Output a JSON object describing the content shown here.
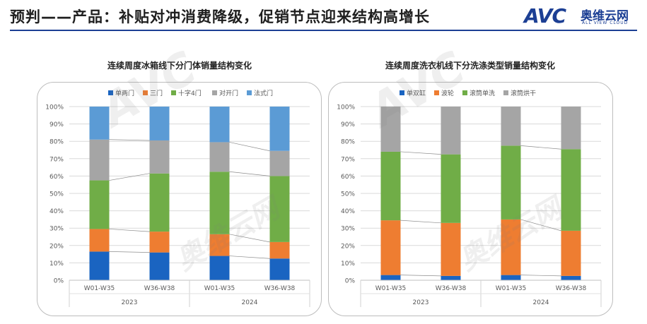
{
  "header": {
    "title": "预判——产品：补贴对冲消费降级，促销节点迎来结构高增长",
    "logo_text": "AVC",
    "logo_cn": "奥维云网",
    "logo_en": "ALL VIEW CLOUD"
  },
  "colors": {
    "accent": "#1c3f94",
    "series": [
      "#1a64c1",
      "#ee7d31",
      "#70ad47",
      "#a5a5a5",
      "#5b9bd5"
    ]
  },
  "chart_data": [
    {
      "type": "bar",
      "stacked": true,
      "title": "连续周度冰箱线下分门体销量结构变化",
      "categories": [
        "W01-W35",
        "W36-W38",
        "W01-W35",
        "W36-W38"
      ],
      "groups": [
        {
          "label": "2023",
          "span": 2
        },
        {
          "label": "2024",
          "span": 2
        }
      ],
      "y_ticks": [
        "0%",
        "10%",
        "20%",
        "30%",
        "40%",
        "50%",
        "60%",
        "70%",
        "80%",
        "90%",
        "100%"
      ],
      "ylim": [
        0,
        100
      ],
      "legend_position": "top-left",
      "series": [
        {
          "name": "单两门",
          "values": [
            16.5,
            16,
            14,
            12.5
          ]
        },
        {
          "name": "三门",
          "values": [
            13,
            12,
            12.5,
            9.5
          ]
        },
        {
          "name": "十字4门",
          "values": [
            28,
            33.5,
            36,
            38
          ]
        },
        {
          "name": "对开门",
          "values": [
            23.5,
            19,
            17,
            14.5
          ]
        },
        {
          "name": "法式门",
          "values": [
            19,
            19.5,
            20.5,
            25.5
          ]
        }
      ]
    },
    {
      "type": "bar",
      "stacked": true,
      "title": "连续周度洗衣机线下分洗涤类型销量结构变化",
      "categories": [
        "W01-W35",
        "W36-W38",
        "W01-W35",
        "W36-W38"
      ],
      "groups": [
        {
          "label": "2023",
          "span": 2
        },
        {
          "label": "2024",
          "span": 2
        }
      ],
      "y_ticks": [
        "0%",
        "10%",
        "20%",
        "30%",
        "40%",
        "50%",
        "60%",
        "70%",
        "80%",
        "90%",
        "100%"
      ],
      "ylim": [
        0,
        100
      ],
      "legend_position": "top-left",
      "series": [
        {
          "name": "单双缸",
          "values": [
            3,
            2.5,
            3,
            2.5
          ]
        },
        {
          "name": "波轮",
          "values": [
            31.5,
            30.5,
            32,
            26
          ]
        },
        {
          "name": "滚筒单洗",
          "values": [
            39.5,
            39.5,
            42.5,
            47
          ]
        },
        {
          "name": "滚筒烘干",
          "values": [
            26,
            27.5,
            22.5,
            24.5
          ]
        }
      ]
    }
  ]
}
